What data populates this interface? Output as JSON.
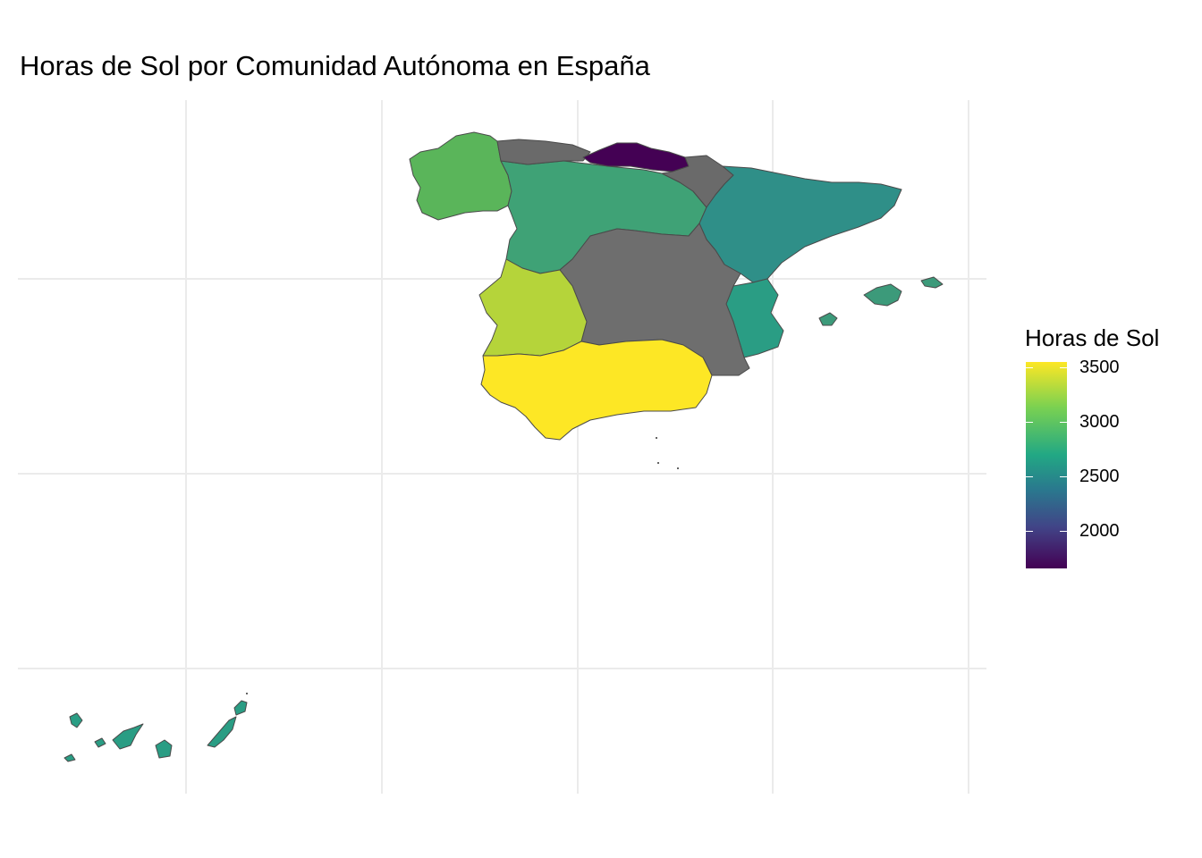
{
  "title": "Horas de Sol por Comunidad Autónoma en España",
  "legend": {
    "title": "Horas de Sol",
    "breaks": [
      "3500",
      "3000",
      "2500",
      "2000"
    ],
    "range": [
      1650,
      3560
    ],
    "colors": [
      "#440154",
      "#414487",
      "#2a788e",
      "#22a884",
      "#7ad151",
      "#fde725"
    ]
  },
  "regions": [
    {
      "id": "galicia",
      "color": "#5ab55a"
    },
    {
      "id": "asturias",
      "color": "#6a6a6a"
    },
    {
      "id": "cantabria",
      "color": "#440154"
    },
    {
      "id": "pais-vasco",
      "color": "#46166a"
    },
    {
      "id": "navarra",
      "color": "#6a6a6a"
    },
    {
      "id": "castilla-y-leon",
      "color": "#3fa276"
    },
    {
      "id": "aragon-cataluna",
      "color": "#2f8f88"
    },
    {
      "id": "valencia",
      "color": "#2a9d84"
    },
    {
      "id": "extremadura",
      "color": "#b5d43a"
    },
    {
      "id": "centro-interior",
      "color": "#6e6e6e"
    },
    {
      "id": "andalucia",
      "color": "#fde725"
    },
    {
      "id": "baleares",
      "color": "#3c9a7a"
    },
    {
      "id": "canarias",
      "color": "#2a9d84"
    }
  ],
  "colors": {
    "grid": "#ebebeb",
    "border": "#4a4a4a",
    "na": "#6e6e6e"
  }
}
